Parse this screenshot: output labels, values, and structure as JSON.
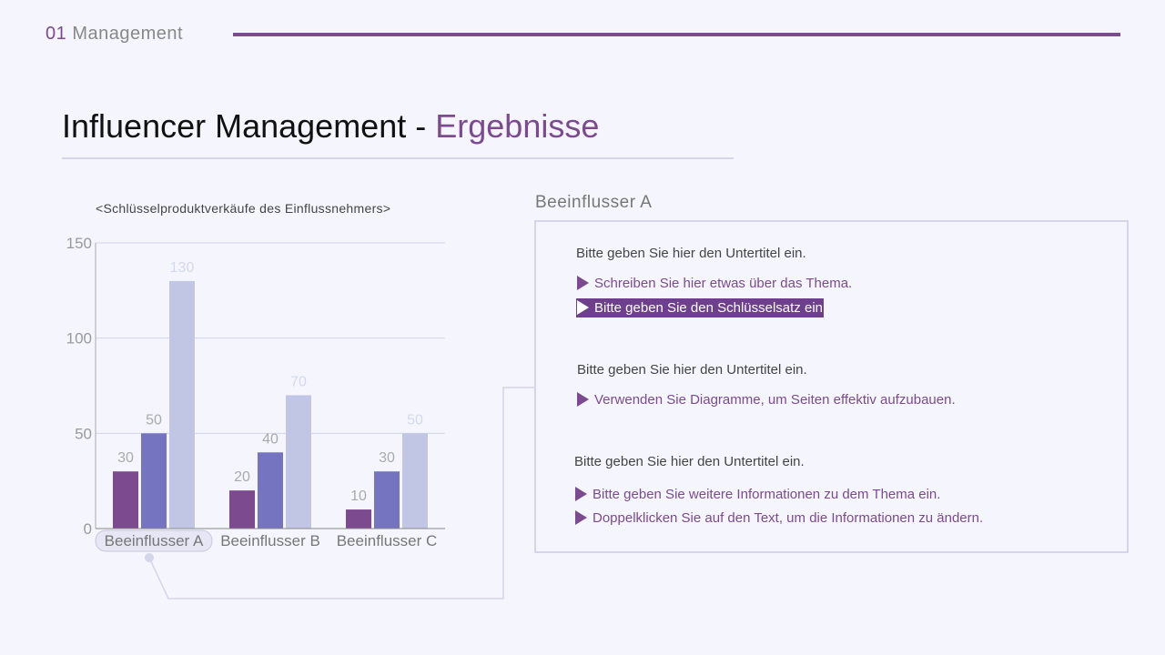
{
  "header": {
    "section_number": "01",
    "section_label": "Management"
  },
  "title": {
    "main": "Influencer Management",
    "separator": "-",
    "accent": "Ergebnisse"
  },
  "colors": {
    "accent": "#7b4a8f",
    "series": [
      "#7b4a8f",
      "#7474c0",
      "#c0c6e4"
    ]
  },
  "chart_data": {
    "type": "bar",
    "title": "<Schlüsselproduktverkäufe des Einflussnehmers>",
    "categories": [
      "Beeinflusser A",
      "Beeinflusser B",
      "Beeinflusser C"
    ],
    "series": [
      {
        "values": [
          30,
          20,
          10
        ]
      },
      {
        "values": [
          50,
          40,
          30
        ]
      },
      {
        "values": [
          130,
          70,
          50
        ]
      }
    ],
    "ylim": [
      0,
      150
    ],
    "yticks": [
      "0",
      "50",
      "100",
      "150"
    ],
    "grid": true,
    "data_labels": true
  },
  "panel": {
    "title": "Beeinflusser A",
    "groups": [
      {
        "subtitle": "Bitte geben Sie hier den Untertitel ein.",
        "bullets": [
          "Schreiben Sie hier etwas über das Thema.",
          "Bitte geben Sie den Schlüsselsatz ein"
        ]
      },
      {
        "subtitle": "Bitte geben Sie hier den Untertitel ein.",
        "bullets": [
          "Verwenden Sie Diagramme, um Seiten effektiv aufzubauen."
        ]
      },
      {
        "subtitle": "Bitte geben Sie hier den Untertitel ein.",
        "bullets": [
          "Bitte geben Sie weitere Informationen zu dem Thema ein.",
          "Doppelklicken Sie auf den Text, um die Informationen zu ändern."
        ]
      }
    ]
  }
}
